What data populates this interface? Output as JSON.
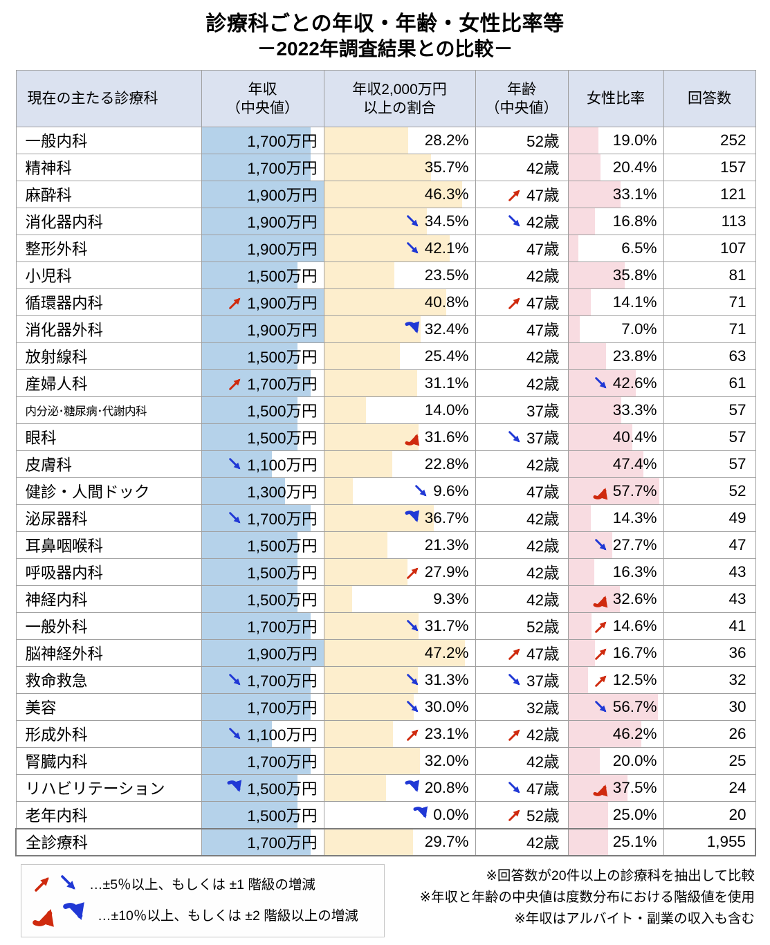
{
  "chart_data": {
    "type": "table",
    "title": "診療科ごとの年収・年齢・女性比率等",
    "subtitle": "－2022年調査結果との比較－",
    "columns": [
      "現在の主たる診療科",
      "年収\n（中央値）",
      "年収2,000万円\n以上の割合",
      "年齢\n（中央値）",
      "女性比率",
      "回答数"
    ],
    "rows": [
      {
        "dept": "一般内科",
        "income": "1,700万円",
        "income_v": 1700,
        "pct": "28.2%",
        "pct_v": 28.2,
        "age": "52歳",
        "female": "19.0%",
        "female_v": 19.0,
        "count": "252",
        "arrows": {
          "income": null,
          "pct": null,
          "age": null,
          "female": null
        },
        "small": false
      },
      {
        "dept": "精神科",
        "income": "1,700万円",
        "income_v": 1700,
        "pct": "35.7%",
        "pct_v": 35.7,
        "age": "42歳",
        "female": "20.4%",
        "female_v": 20.4,
        "count": "157",
        "arrows": {
          "income": null,
          "pct": null,
          "age": null,
          "female": null
        },
        "small": false
      },
      {
        "dept": "麻酔科",
        "income": "1,900万円",
        "income_v": 1900,
        "pct": "46.3%",
        "pct_v": 46.3,
        "age": "47歳",
        "female": "33.1%",
        "female_v": 33.1,
        "count": "121",
        "arrows": {
          "income": null,
          "pct": null,
          "age": "up1",
          "female": null
        },
        "small": false
      },
      {
        "dept": "消化器内科",
        "income": "1,900万円",
        "income_v": 1900,
        "pct": "34.5%",
        "pct_v": 34.5,
        "age": "42歳",
        "female": "16.8%",
        "female_v": 16.8,
        "count": "113",
        "arrows": {
          "income": null,
          "pct": "down1",
          "age": "down1",
          "female": null
        },
        "small": false
      },
      {
        "dept": "整形外科",
        "income": "1,900万円",
        "income_v": 1900,
        "pct": "42.1%",
        "pct_v": 42.1,
        "age": "47歳",
        "female": "6.5%",
        "female_v": 6.5,
        "count": "107",
        "arrows": {
          "income": null,
          "pct": "down1",
          "age": null,
          "female": null
        },
        "small": false
      },
      {
        "dept": "小児科",
        "income": "1,500万円",
        "income_v": 1500,
        "pct": "23.5%",
        "pct_v": 23.5,
        "age": "42歳",
        "female": "35.8%",
        "female_v": 35.8,
        "count": "81",
        "arrows": {
          "income": null,
          "pct": null,
          "age": null,
          "female": null
        },
        "small": false
      },
      {
        "dept": "循環器内科",
        "income": "1,900万円",
        "income_v": 1900,
        "pct": "40.8%",
        "pct_v": 40.8,
        "age": "47歳",
        "female": "14.1%",
        "female_v": 14.1,
        "count": "71",
        "arrows": {
          "income": "up1",
          "pct": null,
          "age": "up1",
          "female": null
        },
        "small": false
      },
      {
        "dept": "消化器外科",
        "income": "1,900万円",
        "income_v": 1900,
        "pct": "32.4%",
        "pct_v": 32.4,
        "age": "47歳",
        "female": "7.0%",
        "female_v": 7.0,
        "count": "71",
        "arrows": {
          "income": null,
          "pct": "down2",
          "age": null,
          "female": null
        },
        "small": false
      },
      {
        "dept": "放射線科",
        "income": "1,500万円",
        "income_v": 1500,
        "pct": "25.4%",
        "pct_v": 25.4,
        "age": "42歳",
        "female": "23.8%",
        "female_v": 23.8,
        "count": "63",
        "arrows": {
          "income": null,
          "pct": null,
          "age": null,
          "female": null
        },
        "small": false
      },
      {
        "dept": "産婦人科",
        "income": "1,700万円",
        "income_v": 1700,
        "pct": "31.1%",
        "pct_v": 31.1,
        "age": "42歳",
        "female": "42.6%",
        "female_v": 42.6,
        "count": "61",
        "arrows": {
          "income": "up1",
          "pct": null,
          "age": null,
          "female": "down1"
        },
        "small": false
      },
      {
        "dept": "内分泌･糖尿病･代謝内科",
        "income": "1,500万円",
        "income_v": 1500,
        "pct": "14.0%",
        "pct_v": 14.0,
        "age": "37歳",
        "female": "33.3%",
        "female_v": 33.3,
        "count": "57",
        "arrows": {
          "income": null,
          "pct": null,
          "age": null,
          "female": null
        },
        "small": true
      },
      {
        "dept": "眼科",
        "income": "1,500万円",
        "income_v": 1500,
        "pct": "31.6%",
        "pct_v": 31.6,
        "age": "37歳",
        "female": "40.4%",
        "female_v": 40.4,
        "count": "57",
        "arrows": {
          "income": null,
          "pct": "up2",
          "age": "down1",
          "female": null
        },
        "small": false
      },
      {
        "dept": "皮膚科",
        "income": "1,100万円",
        "income_v": 1100,
        "pct": "22.8%",
        "pct_v": 22.8,
        "age": "42歳",
        "female": "47.4%",
        "female_v": 47.4,
        "count": "57",
        "arrows": {
          "income": "down1",
          "pct": null,
          "age": null,
          "female": null
        },
        "small": false
      },
      {
        "dept": "健診・人間ドック",
        "income": "1,300万円",
        "income_v": 1300,
        "pct": "9.6%",
        "pct_v": 9.6,
        "age": "47歳",
        "female": "57.7%",
        "female_v": 57.7,
        "count": "52",
        "arrows": {
          "income": null,
          "pct": "down1",
          "age": null,
          "female": "up2"
        },
        "small": false
      },
      {
        "dept": "泌尿器科",
        "income": "1,700万円",
        "income_v": 1700,
        "pct": "36.7%",
        "pct_v": 36.7,
        "age": "42歳",
        "female": "14.3%",
        "female_v": 14.3,
        "count": "49",
        "arrows": {
          "income": "down1",
          "pct": "down2",
          "age": null,
          "female": null
        },
        "small": false
      },
      {
        "dept": "耳鼻咽喉科",
        "income": "1,500万円",
        "income_v": 1500,
        "pct": "21.3%",
        "pct_v": 21.3,
        "age": "42歳",
        "female": "27.7%",
        "female_v": 27.7,
        "count": "47",
        "arrows": {
          "income": null,
          "pct": null,
          "age": null,
          "female": "down1"
        },
        "small": false
      },
      {
        "dept": "呼吸器内科",
        "income": "1,500万円",
        "income_v": 1500,
        "pct": "27.9%",
        "pct_v": 27.9,
        "age": "42歳",
        "female": "16.3%",
        "female_v": 16.3,
        "count": "43",
        "arrows": {
          "income": null,
          "pct": "up1",
          "age": null,
          "female": null
        },
        "small": false
      },
      {
        "dept": "神経内科",
        "income": "1,500万円",
        "income_v": 1500,
        "pct": "9.3%",
        "pct_v": 9.3,
        "age": "42歳",
        "female": "32.6%",
        "female_v": 32.6,
        "count": "43",
        "arrows": {
          "income": null,
          "pct": null,
          "age": null,
          "female": "up2"
        },
        "small": false
      },
      {
        "dept": "一般外科",
        "income": "1,700万円",
        "income_v": 1700,
        "pct": "31.7%",
        "pct_v": 31.7,
        "age": "52歳",
        "female": "14.6%",
        "female_v": 14.6,
        "count": "41",
        "arrows": {
          "income": null,
          "pct": "down1",
          "age": null,
          "female": "up1"
        },
        "small": false
      },
      {
        "dept": "脳神経外科",
        "income": "1,900万円",
        "income_v": 1900,
        "pct": "47.2%",
        "pct_v": 47.2,
        "age": "47歳",
        "female": "16.7%",
        "female_v": 16.7,
        "count": "36",
        "arrows": {
          "income": null,
          "pct": null,
          "age": "up1",
          "female": "up1"
        },
        "small": false
      },
      {
        "dept": "救命救急",
        "income": "1,700万円",
        "income_v": 1700,
        "pct": "31.3%",
        "pct_v": 31.3,
        "age": "37歳",
        "female": "12.5%",
        "female_v": 12.5,
        "count": "32",
        "arrows": {
          "income": "down1",
          "pct": "down1",
          "age": "down1",
          "female": "up1"
        },
        "small": false
      },
      {
        "dept": "美容",
        "income": "1,700万円",
        "income_v": 1700,
        "pct": "30.0%",
        "pct_v": 30.0,
        "age": "32歳",
        "female": "56.7%",
        "female_v": 56.7,
        "count": "30",
        "arrows": {
          "income": null,
          "pct": "down1",
          "age": null,
          "female": "down1"
        },
        "small": false
      },
      {
        "dept": "形成外科",
        "income": "1,100万円",
        "income_v": 1100,
        "pct": "23.1%",
        "pct_v": 23.1,
        "age": "42歳",
        "female": "46.2%",
        "female_v": 46.2,
        "count": "26",
        "arrows": {
          "income": "down1",
          "pct": "up1",
          "age": "up1",
          "female": null
        },
        "small": false
      },
      {
        "dept": "腎臓内科",
        "income": "1,700万円",
        "income_v": 1700,
        "pct": "32.0%",
        "pct_v": 32.0,
        "age": "42歳",
        "female": "20.0%",
        "female_v": 20.0,
        "count": "25",
        "arrows": {
          "income": null,
          "pct": null,
          "age": null,
          "female": null
        },
        "small": false
      },
      {
        "dept": "リハビリテーション",
        "income": "1,500万円",
        "income_v": 1500,
        "pct": "20.8%",
        "pct_v": 20.8,
        "age": "47歳",
        "female": "37.5%",
        "female_v": 37.5,
        "count": "24",
        "arrows": {
          "income": "down2",
          "pct": "down2",
          "age": "down1",
          "female": "up2"
        },
        "small": false
      },
      {
        "dept": "老年内科",
        "income": "1,500万円",
        "income_v": 1500,
        "pct": "0.0%",
        "pct_v": 0.0,
        "age": "52歳",
        "female": "25.0%",
        "female_v": 25.0,
        "count": "20",
        "arrows": {
          "income": null,
          "pct": "down2",
          "age": "up1",
          "female": null
        },
        "small": false
      }
    ],
    "total": {
      "dept": "全診療科",
      "income": "1,700万円",
      "income_v": 1700,
      "pct": "29.7%",
      "pct_v": 29.7,
      "age": "42歳",
      "female": "25.1%",
      "female_v": 25.1,
      "count": "1,955",
      "arrows": {
        "income": null,
        "pct": null,
        "age": null,
        "female": null
      },
      "small": false
    },
    "legend": [
      {
        "arrows": [
          "up1",
          "down1"
        ],
        "label": "…±5％以上、もしくは ±1 階級の増減"
      },
      {
        "arrows": [
          "up2",
          "down2"
        ],
        "label": "…±10％以上、もしくは ±2 階級以上の増減"
      }
    ],
    "notes": [
      "※回答数が20件以上の診療科を抽出して比較",
      "※年収と年齢の中央値は度数分布における階級値を使用",
      "※年収はアルバイト・副業の収入も含む"
    ]
  },
  "colors": {
    "header_bg": "#dbe2f0",
    "income_bar": "#b5d2ea",
    "pct_bar": "#fdeecd",
    "female_bar": "#f8dce1",
    "arrow_up": "#cf2a0e",
    "arrow_down": "#2038d5",
    "border": "#9f9f9f"
  }
}
